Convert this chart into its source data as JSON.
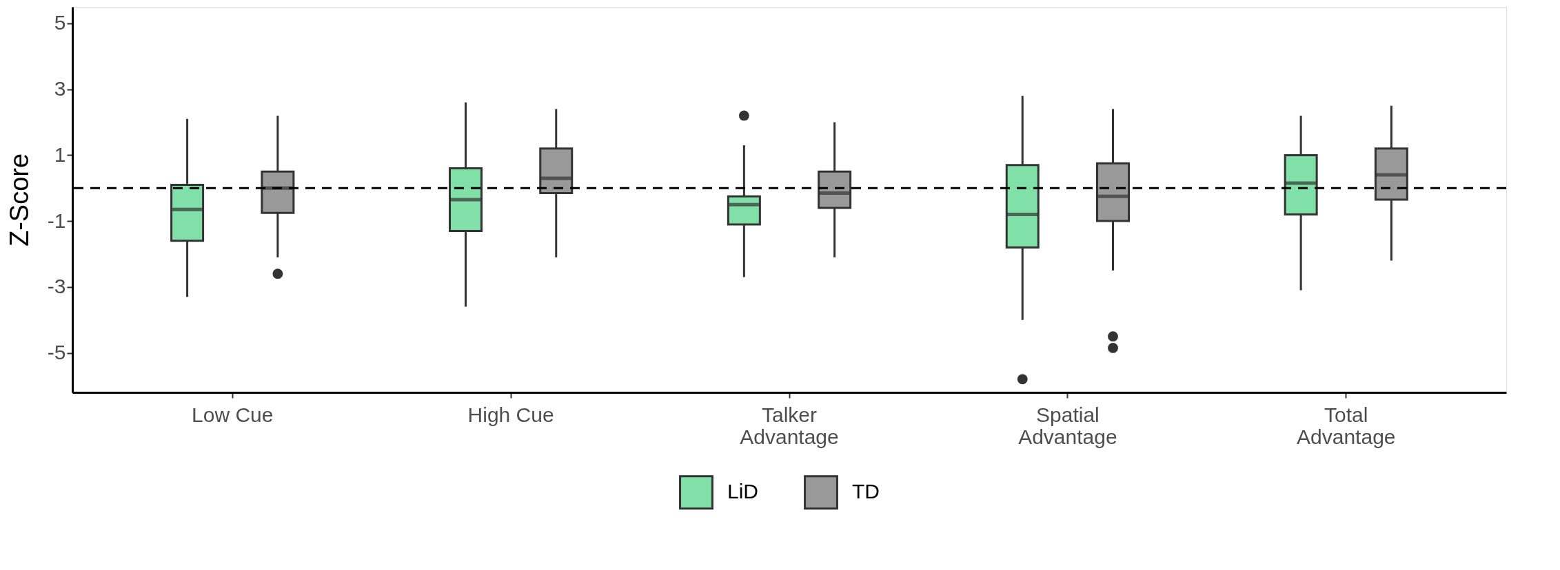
{
  "chart_data": {
    "type": "box",
    "ylabel": "Z-Score",
    "categories": [
      "Low Cue",
      "High Cue",
      "Talker\nAdvantage",
      "Spatial\nAdvantage",
      "Total\nAdvantage"
    ],
    "ylim": [
      -6.2,
      5.5
    ],
    "yticks": [
      -5,
      -3,
      -1,
      1,
      3,
      5
    ],
    "grid": false,
    "legend": "bottom",
    "ref_lines": [
      {
        "axis": "y",
        "value": 0,
        "line_style": "dashed",
        "color": "#000000"
      }
    ],
    "series": [
      {
        "name": "LiD",
        "color": "#80e0a8",
        "boxes": [
          {
            "low": -3.3,
            "q1": -1.6,
            "median": -0.65,
            "q3": 0.1,
            "high": 2.1
          },
          {
            "low": -3.6,
            "q1": -1.3,
            "median": -0.35,
            "q3": 0.6,
            "high": 2.6
          },
          {
            "low": -2.7,
            "q1": -1.1,
            "median": -0.5,
            "q3": -0.25,
            "high": 1.3,
            "outliers": [
              2.2
            ]
          },
          {
            "low": -4.0,
            "q1": -1.8,
            "median": -0.8,
            "q3": 0.7,
            "high": 2.8,
            "outliers": [
              -5.8
            ]
          },
          {
            "low": -3.1,
            "q1": -0.8,
            "median": 0.15,
            "q3": 1.0,
            "high": 2.2
          }
        ]
      },
      {
        "name": "TD",
        "color": "#999999",
        "boxes": [
          {
            "low": -2.1,
            "q1": -0.75,
            "median": 0.0,
            "q3": 0.5,
            "high": 2.2,
            "outliers": [
              -2.6
            ]
          },
          {
            "low": -2.1,
            "q1": -0.15,
            "median": 0.3,
            "q3": 1.2,
            "high": 2.4
          },
          {
            "low": -2.1,
            "q1": -0.6,
            "median": -0.15,
            "q3": 0.5,
            "high": 2.0
          },
          {
            "low": -2.5,
            "q1": -1.0,
            "median": -0.25,
            "q3": 0.75,
            "high": 2.4,
            "outliers": [
              -4.5,
              -4.85
            ]
          },
          {
            "low": -2.2,
            "q1": -0.35,
            "median": 0.4,
            "q3": 1.2,
            "high": 2.5
          }
        ]
      }
    ]
  }
}
